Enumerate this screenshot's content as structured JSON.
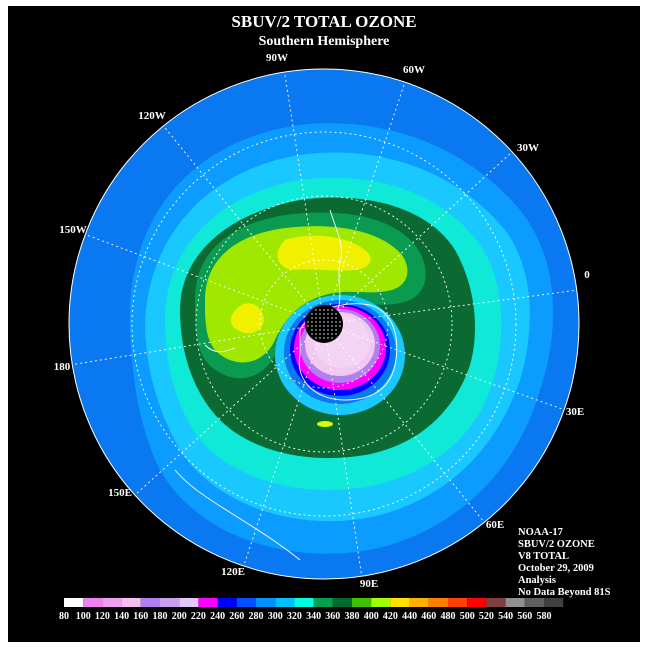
{
  "title": "SBUV/2 TOTAL OZONE",
  "subtitle": "Southern Hemisphere",
  "longitude_labels": [
    "90W",
    "60W",
    "30W",
    "0",
    "30E",
    "60E",
    "90E",
    "120E",
    "150E",
    "180",
    "150W",
    "120W"
  ],
  "info": {
    "line1": "NOAA-17",
    "line2": "SBUV/2 OZONE",
    "line3": "V8 TOTAL",
    "line4": "October 29, 2009",
    "line5": "Analysis",
    "line6": "No Data Beyond 81S"
  },
  "colorbar": {
    "ticks": [
      "80",
      "100",
      "120",
      "140",
      "160",
      "180",
      "200",
      "220",
      "240",
      "260",
      "280",
      "300",
      "320",
      "340",
      "360",
      "380",
      "400",
      "420",
      "440",
      "460",
      "480",
      "500",
      "520",
      "540",
      "560",
      "580"
    ],
    "colors": [
      "#ffffff",
      "#ee82ee",
      "#f0a0f0",
      "#f4c0f4",
      "#b080f0",
      "#c8a0f0",
      "#e0c8f8",
      "#ff00ff",
      "#0000ff",
      "#0050ff",
      "#0090ff",
      "#00c0ff",
      "#00ffe0",
      "#00a050",
      "#006a30",
      "#40c000",
      "#a0ff00",
      "#ffe000",
      "#ffb000",
      "#ff8000",
      "#ff4000",
      "#ff0000",
      "#804040",
      "#909090",
      "#606060",
      "#404040"
    ]
  }
}
